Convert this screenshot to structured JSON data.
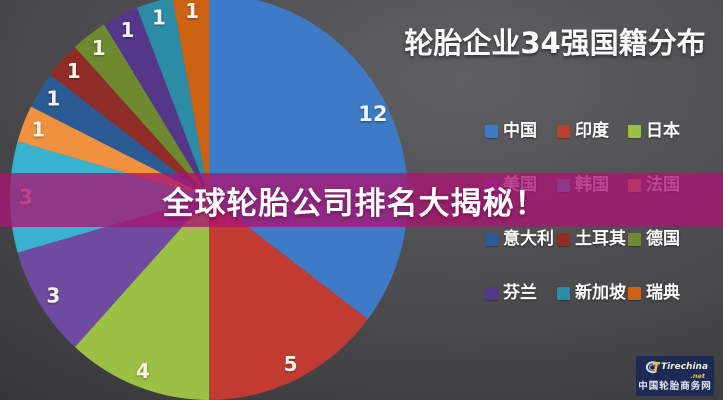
{
  "title": "轮胎企业34强国籍分布",
  "banner": {
    "text": "全球轮胎公司排名大揭秘！",
    "color": "#AA1473"
  },
  "watermark": {
    "logo_text": "Tirechina",
    "logo_suffix": ".net",
    "site_name": "中国轮胎商务网",
    "bg_color": "#1E2A56"
  },
  "chart_data": {
    "type": "pie",
    "title": "轮胎企业34强国籍分布",
    "total": 34,
    "start_angle_deg": 0,
    "direction": "clockwise",
    "legend_position": "right",
    "legend_columns": 3,
    "series": [
      {
        "label": "中国",
        "value": 12,
        "color": "#3E7AC5"
      },
      {
        "label": "印度",
        "value": 5,
        "color": "#C23B33"
      },
      {
        "label": "日本",
        "value": 4,
        "color": "#9CC044"
      },
      {
        "label": "美国",
        "value": 3,
        "color": "#6E4BA1"
      },
      {
        "label": "韩国",
        "value": 3,
        "color": "#38B2CF"
      },
      {
        "label": "法国",
        "value": 1,
        "color": "#F09140"
      },
      {
        "label": "意大利",
        "value": 1,
        "color": "#2B5B95"
      },
      {
        "label": "土耳其",
        "value": 1,
        "color": "#902C26"
      },
      {
        "label": "德国",
        "value": 1,
        "color": "#6F8931"
      },
      {
        "label": "芬兰",
        "value": 1,
        "color": "#543789"
      },
      {
        "label": "新加坡",
        "value": 1,
        "color": "#2D8CA5"
      },
      {
        "label": "瑞典",
        "value": 1,
        "color": "#CC6212"
      }
    ]
  }
}
